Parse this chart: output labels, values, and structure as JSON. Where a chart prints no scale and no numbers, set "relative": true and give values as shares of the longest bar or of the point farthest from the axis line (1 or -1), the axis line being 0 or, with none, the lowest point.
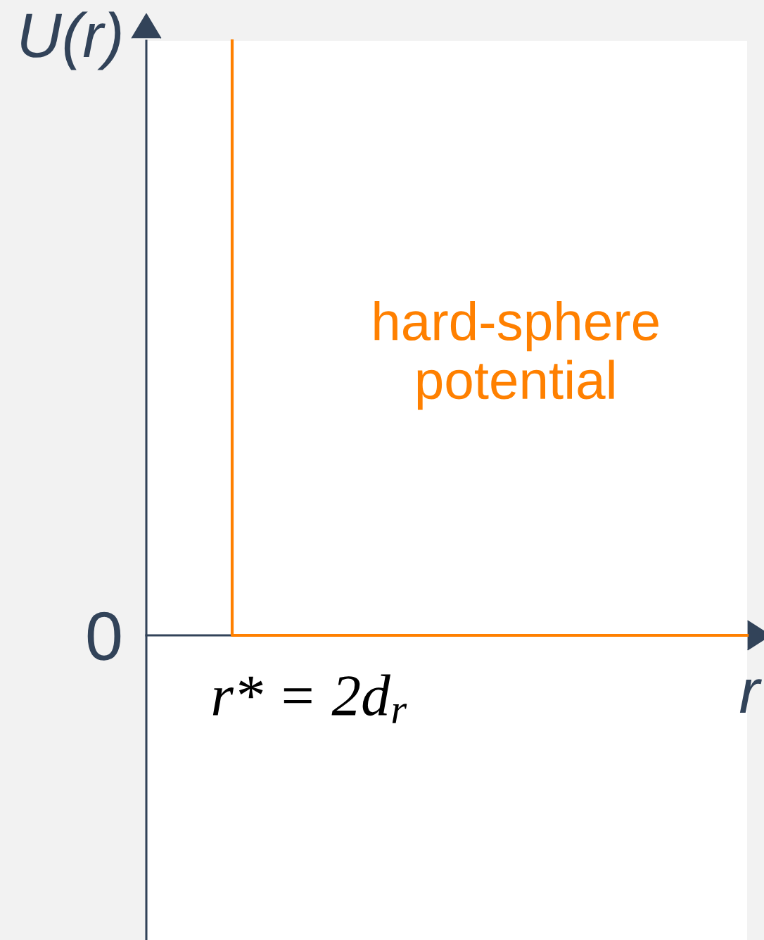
{
  "chart_data": {
    "type": "step",
    "ylabel": "U(r)",
    "xlabel": "r",
    "categories": [
      null,
      null,
      null,
      null,
      null,
      null,
      null,
      null
    ],
    "series": [
      {
        "name": "hard-sphere\npotential",
        "color": "#ff8000",
        "values": [
          null,
          1,
          0,
          0,
          0,
          0,
          0,
          0
        ]
      }
    ],
    "relative": true,
    "annotations": [
      "0",
      "r* = 2d$_{r}$"
    ]
  }
}
